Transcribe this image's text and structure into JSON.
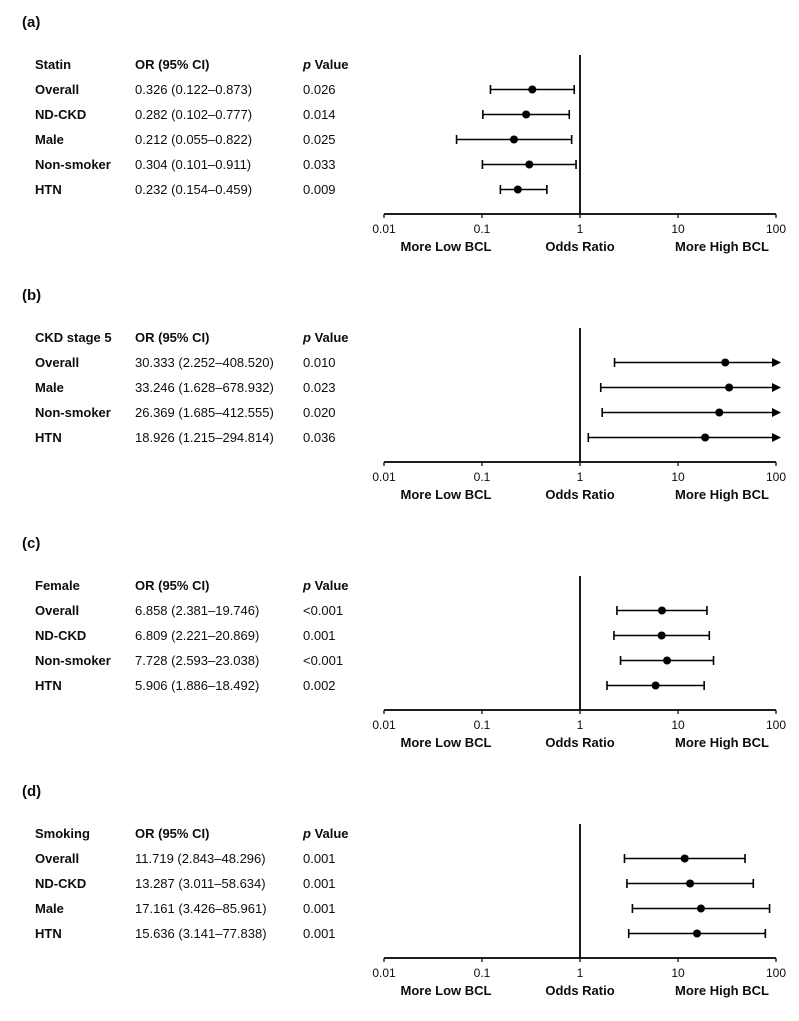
{
  "chart_data": [
    {
      "type": "forest",
      "panel": "a",
      "label": "(a)",
      "group_header": "Statin",
      "or_header": "OR (95% CI)",
      "p_header": "p Value",
      "rows": [
        {
          "name": "Overall",
          "or": 0.326,
          "ci_low": 0.122,
          "ci_high": 0.873,
          "or_text": "0.326 (0.122–0.873)",
          "p_text": "0.026"
        },
        {
          "name": "ND-CKD",
          "or": 0.282,
          "ci_low": 0.102,
          "ci_high": 0.777,
          "or_text": "0.282 (0.102–0.777)",
          "p_text": "0.014"
        },
        {
          "name": "Male",
          "or": 0.212,
          "ci_low": 0.055,
          "ci_high": 0.822,
          "or_text": "0.212 (0.055–0.822)",
          "p_text": "0.025"
        },
        {
          "name": "Non-smoker",
          "or": 0.304,
          "ci_low": 0.101,
          "ci_high": 0.911,
          "or_text": "0.304 (0.101–0.911)",
          "p_text": "0.033"
        },
        {
          "name": "HTN",
          "or": 0.232,
          "ci_low": 0.154,
          "ci_high": 0.459,
          "or_text": "0.232 (0.154–0.459)",
          "p_text": "0.009"
        }
      ],
      "x_axis": {
        "scale": "log",
        "range": [
          0.01,
          100
        ],
        "ref_line": 1,
        "ticks": [
          0.01,
          0.1,
          1,
          10,
          100
        ],
        "tick_labels": [
          "0.01",
          "0.1",
          "1",
          "10",
          "100"
        ]
      },
      "captions": {
        "low": "More Low BCL",
        "center": "Odds Ratio",
        "high": "More High BCL"
      }
    },
    {
      "type": "forest",
      "panel": "b",
      "label": "(b)",
      "group_header": "CKD stage 5",
      "or_header": "OR (95% CI)",
      "p_header": "p Value",
      "rows": [
        {
          "name": "Overall",
          "or": 30.333,
          "ci_low": 2.252,
          "ci_high": 408.52,
          "or_text": "30.333 (2.252–408.520)",
          "p_text": "0.010"
        },
        {
          "name": "Male",
          "or": 33.246,
          "ci_low": 1.628,
          "ci_high": 678.932,
          "or_text": "33.246 (1.628–678.932)",
          "p_text": "0.023"
        },
        {
          "name": "Non-smoker",
          "or": 26.369,
          "ci_low": 1.685,
          "ci_high": 412.555,
          "or_text": "26.369 (1.685–412.555)",
          "p_text": "0.020"
        },
        {
          "name": "HTN",
          "or": 18.926,
          "ci_low": 1.215,
          "ci_high": 294.814,
          "or_text": "18.926 (1.215–294.814)",
          "p_text": "0.036"
        }
      ],
      "x_axis": {
        "scale": "log",
        "range": [
          0.01,
          100
        ],
        "ref_line": 1,
        "ticks": [
          0.01,
          0.1,
          1,
          10,
          100
        ],
        "tick_labels": [
          "0.01",
          "0.1",
          "1",
          "10",
          "100"
        ]
      },
      "captions": {
        "low": "More Low BCL",
        "center": "Odds Ratio",
        "high": "More High BCL"
      }
    },
    {
      "type": "forest",
      "panel": "c",
      "label": "(c)",
      "group_header": "Female",
      "or_header": "OR (95% CI)",
      "p_header": "p Value",
      "rows": [
        {
          "name": "Overall",
          "or": 6.858,
          "ci_low": 2.381,
          "ci_high": 19.746,
          "or_text": "6.858 (2.381–19.746)",
          "p_text": "<0.001"
        },
        {
          "name": "ND-CKD",
          "or": 6.809,
          "ci_low": 2.221,
          "ci_high": 20.869,
          "or_text": "6.809 (2.221–20.869)",
          "p_text": "0.001"
        },
        {
          "name": "Non-smoker",
          "or": 7.728,
          "ci_low": 2.593,
          "ci_high": 23.038,
          "or_text": "7.728 (2.593–23.038)",
          "p_text": "<0.001"
        },
        {
          "name": "HTN",
          "or": 5.906,
          "ci_low": 1.886,
          "ci_high": 18.492,
          "or_text": "5.906 (1.886–18.492)",
          "p_text": "0.002"
        }
      ],
      "x_axis": {
        "scale": "log",
        "range": [
          0.01,
          100
        ],
        "ref_line": 1,
        "ticks": [
          0.01,
          0.1,
          1,
          10,
          100
        ],
        "tick_labels": [
          "0.01",
          "0.1",
          "1",
          "10",
          "100"
        ]
      },
      "captions": {
        "low": "More Low BCL",
        "center": "Odds Ratio",
        "high": "More High BCL"
      }
    },
    {
      "type": "forest",
      "panel": "d",
      "label": "(d)",
      "group_header": "Smoking",
      "or_header": "OR (95% CI)",
      "p_header": "p Value",
      "rows": [
        {
          "name": "Overall",
          "or": 11.719,
          "ci_low": 2.843,
          "ci_high": 48.296,
          "or_text": "11.719 (2.843–48.296)",
          "p_text": "0.001"
        },
        {
          "name": "ND-CKD",
          "or": 13.287,
          "ci_low": 3.011,
          "ci_high": 58.634,
          "or_text": "13.287 (3.011–58.634)",
          "p_text": "0.001"
        },
        {
          "name": "Male",
          "or": 17.161,
          "ci_low": 3.426,
          "ci_high": 85.961,
          "or_text": "17.161 (3.426–85.961)",
          "p_text": "0.001"
        },
        {
          "name": "HTN",
          "or": 15.636,
          "ci_low": 3.141,
          "ci_high": 77.838,
          "or_text": "15.636 (3.141–77.838)",
          "p_text": "0.001"
        }
      ],
      "x_axis": {
        "scale": "log",
        "range": [
          0.01,
          100
        ],
        "ref_line": 1,
        "ticks": [
          0.01,
          0.1,
          1,
          10,
          100
        ],
        "tick_labels": [
          "0.01",
          "0.1",
          "1",
          "10",
          "100"
        ]
      },
      "captions": {
        "low": "More Low BCL",
        "center": "Odds Ratio",
        "high": "More High BCL"
      }
    }
  ]
}
